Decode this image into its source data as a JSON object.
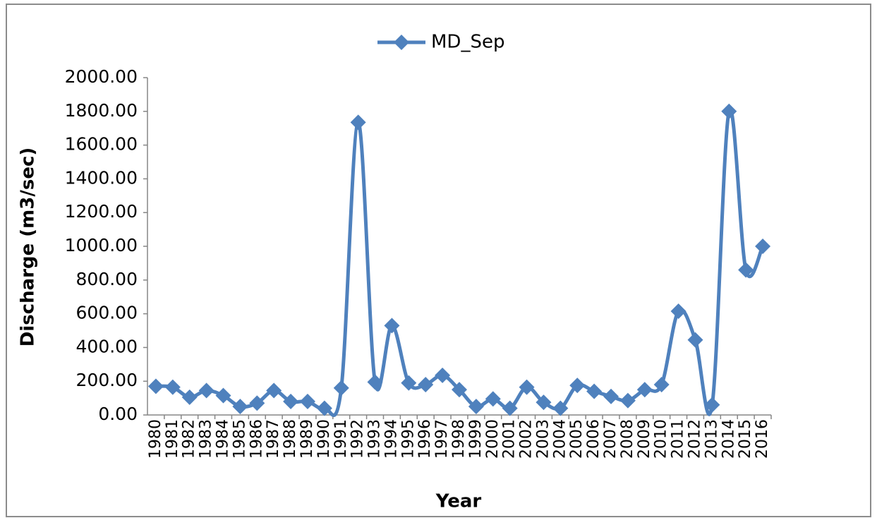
{
  "chart_data": {
    "type": "line",
    "x_label": "Year",
    "y_label": "Discharge (m3/sec)",
    "categories": [
      "1980",
      "1981",
      "1982",
      "1983",
      "1984",
      "1985",
      "1986",
      "1987",
      "1988",
      "1989",
      "1990",
      "1991",
      "1992",
      "1993",
      "1994",
      "1995",
      "1996",
      "1997",
      "1998",
      "1999",
      "2000",
      "2001",
      "2002",
      "2003",
      "2004",
      "2005",
      "2006",
      "2007",
      "2008",
      "2009",
      "2010",
      "2011",
      "2012",
      "2013",
      "2014",
      "2015",
      "2016"
    ],
    "series": [
      {
        "name": "MD_Sep",
        "color": "#4f81bd",
        "values": [
          170,
          165,
          105,
          145,
          115,
          50,
          70,
          145,
          80,
          80,
          40,
          160,
          1735,
          195,
          530,
          190,
          180,
          235,
          150,
          50,
          95,
          40,
          165,
          75,
          40,
          175,
          140,
          110,
          85,
          150,
          180,
          615,
          445,
          60,
          1800,
          860,
          1000
        ]
      }
    ],
    "ylim": [
      0,
      2000
    ],
    "yticks": [
      {
        "value": 0,
        "label": "0.00"
      },
      {
        "value": 200,
        "label": "200.00"
      },
      {
        "value": 400,
        "label": "400.00"
      },
      {
        "value": 600,
        "label": "600.00"
      },
      {
        "value": 800,
        "label": "800.00"
      },
      {
        "value": 1000,
        "label": "1000.00"
      },
      {
        "value": 1200,
        "label": "1200.00"
      },
      {
        "value": 1400,
        "label": "1400.00"
      },
      {
        "value": 1600,
        "label": "1600.00"
      },
      {
        "value": 1800,
        "label": "1800.00"
      },
      {
        "value": 2000,
        "label": "2000.00"
      }
    ],
    "grid": false,
    "legend": "top",
    "smooth": true
  }
}
